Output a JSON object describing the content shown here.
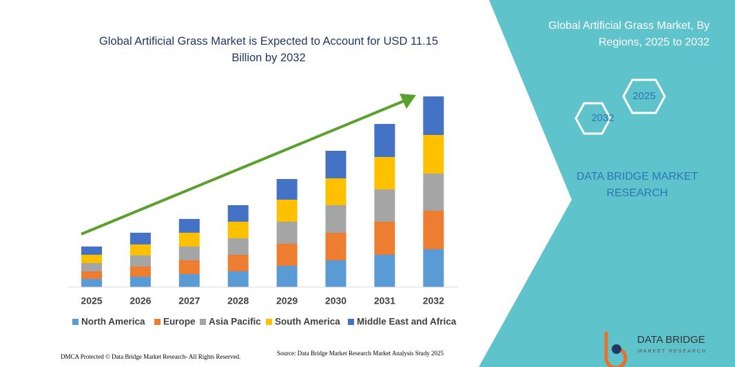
{
  "chart_data": {
    "type": "stacked-bar",
    "title": "Global Artificial Grass Market is Expected to Account for USD 11.15 Billion by 2032",
    "categories": [
      "2025",
      "2026",
      "2027",
      "2028",
      "2029",
      "2030",
      "2031",
      "2032"
    ],
    "series": [
      {
        "name": "North America",
        "color": "#5b9bd5",
        "values": [
          12,
          15,
          19,
          23,
          31,
          39,
          47,
          55
        ]
      },
      {
        "name": "Europe",
        "color": "#ed7d31",
        "values": [
          11,
          15,
          20,
          24,
          32,
          40,
          48,
          56
        ]
      },
      {
        "name": "Asia Pacific",
        "color": "#a5a5a5",
        "values": [
          12,
          16,
          20,
          24,
          32,
          40,
          47,
          54
        ]
      },
      {
        "name": "South America",
        "color": "#ffc000",
        "values": [
          12,
          16,
          20,
          24,
          32,
          39,
          47,
          56
        ]
      },
      {
        "name": "Middle East and Africa",
        "color": "#4472c4",
        "values": [
          12,
          17,
          20,
          24,
          30,
          40,
          48,
          56
        ]
      }
    ],
    "ylim": [
      0,
      300
    ],
    "grid": false,
    "legend": "bottom"
  },
  "panel": {
    "title": "Global Artificial Grass Market, By Regions, 2025 to 2032",
    "hexagons": [
      "2032",
      "2025"
    ],
    "brand": "DATA BRIDGE MARKET RESEARCH"
  },
  "footer": {
    "copyright": "DMCA Protected © Data Bridge Market Research- All Rights Reserved.",
    "source": "Source: Data Bridge Market Research Market Analysis Study 2025"
  },
  "logo": {
    "name": "DATA BRIDGE",
    "tagline": "MARKET RESEARCH"
  }
}
